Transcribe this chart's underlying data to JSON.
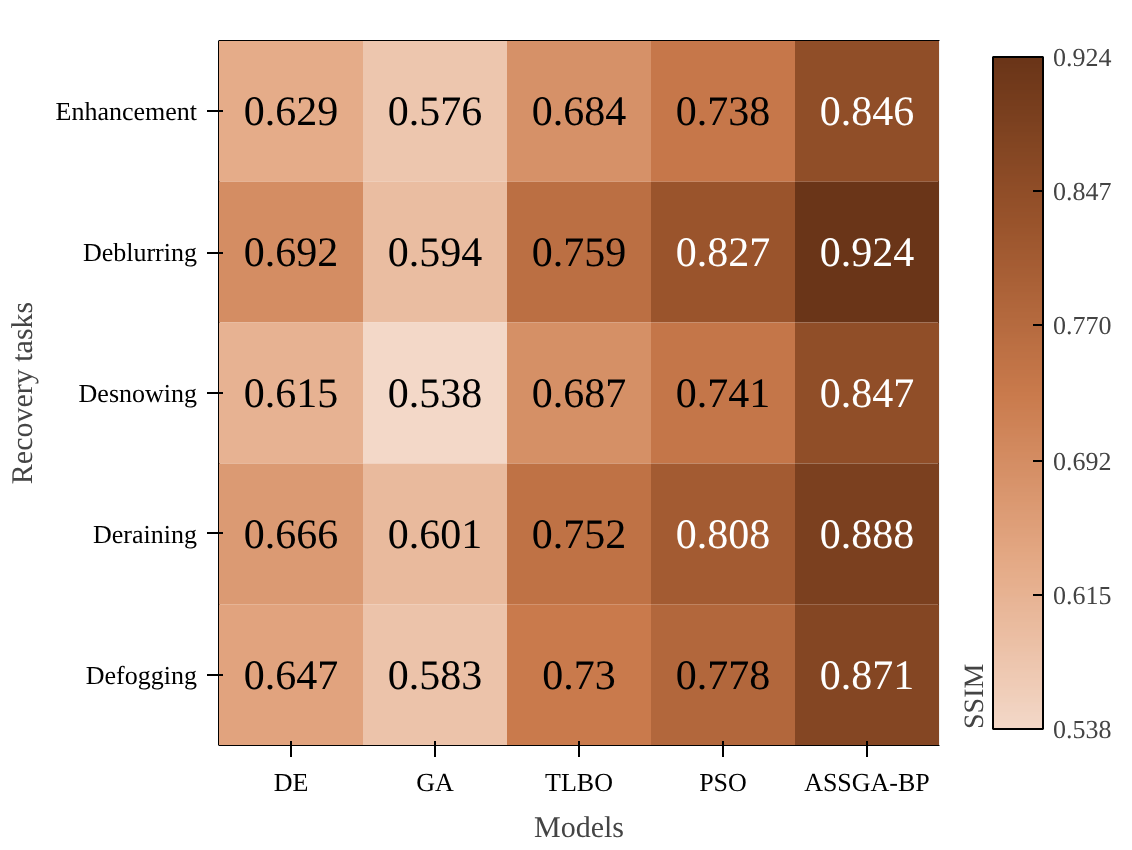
{
  "chart_data": {
    "type": "heatmap",
    "xlabel": "Models",
    "ylabel": "Recovery tasks",
    "clabel": "SSIM",
    "categories": [
      "DE",
      "GA",
      "TLBO",
      "PSO",
      "ASSGA-BP"
    ],
    "y_categories": [
      "Enhancement",
      "Deblurring",
      "Desnowing",
      "Deraining",
      "Defogging"
    ],
    "cells": [
      [
        0.629,
        0.576,
        0.684,
        0.738,
        0.846
      ],
      [
        0.692,
        0.594,
        0.759,
        0.827,
        0.924
      ],
      [
        0.615,
        0.538,
        0.687,
        0.741,
        0.847
      ],
      [
        0.666,
        0.601,
        0.752,
        0.808,
        0.888
      ],
      [
        0.647,
        0.583,
        0.73,
        0.778,
        0.871
      ]
    ],
    "clim": [
      0.538,
      0.924
    ],
    "cticks": [
      0.538,
      0.615,
      0.692,
      {
        "value": 0.77,
        "label": "0.770"
      },
      0.847,
      0.924
    ],
    "data_labels": true,
    "grid": false
  }
}
